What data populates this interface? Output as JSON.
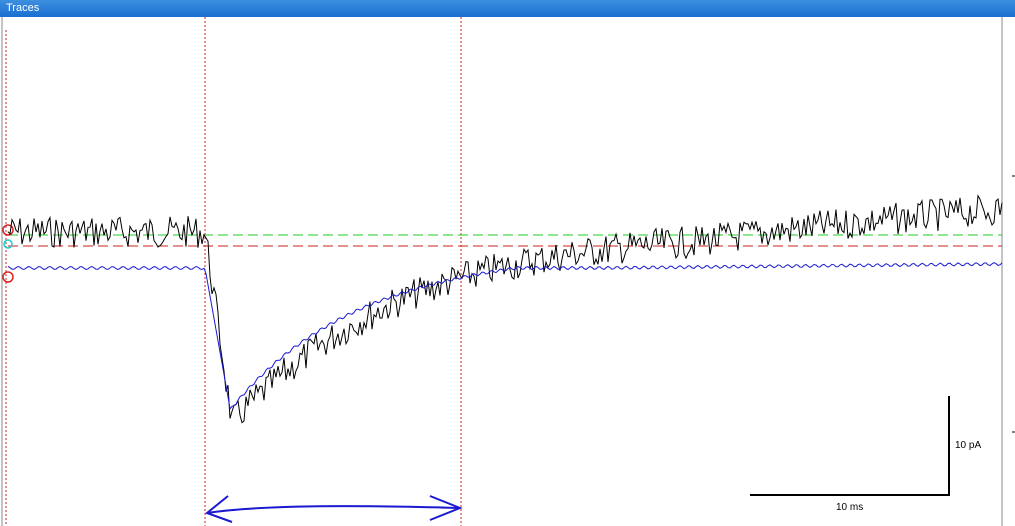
{
  "window": {
    "title": "Traces"
  },
  "scalebar": {
    "y_label": "10 pA",
    "x_label": "10 ms"
  },
  "colors": {
    "trace_raw": "#000000",
    "trace_fit": "#1a1ad0",
    "baseline_green": "#22cc22",
    "baseline_red": "#cc2222",
    "cursor": "#cc2222",
    "arrow": "#1a1ad0",
    "titlebar": "#1a6fd0"
  }
}
